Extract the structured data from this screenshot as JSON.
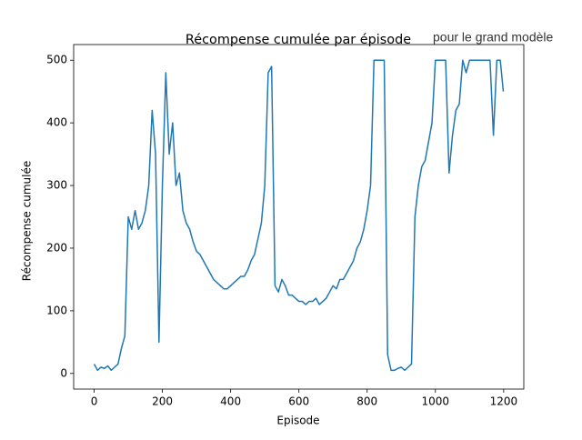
{
  "chart_data": {
    "type": "line",
    "title": "Récompense cumulée par épisode",
    "annotation": "pour le grand modèle",
    "xlabel": "Episode",
    "ylabel": "Récompense cumulée",
    "x": [
      0,
      10,
      20,
      30,
      40,
      50,
      60,
      70,
      80,
      90,
      100,
      110,
      120,
      130,
      140,
      150,
      160,
      170,
      180,
      190,
      200,
      210,
      220,
      230,
      240,
      250,
      260,
      270,
      280,
      290,
      300,
      310,
      320,
      330,
      340,
      350,
      360,
      370,
      380,
      390,
      400,
      410,
      420,
      430,
      440,
      450,
      460,
      470,
      480,
      490,
      500,
      510,
      520,
      530,
      540,
      550,
      560,
      570,
      580,
      590,
      600,
      610,
      620,
      630,
      640,
      650,
      660,
      670,
      680,
      690,
      700,
      710,
      720,
      730,
      740,
      750,
      760,
      770,
      780,
      790,
      800,
      810,
      820,
      830,
      840,
      850,
      860,
      870,
      880,
      890,
      900,
      910,
      920,
      930,
      940,
      950,
      960,
      970,
      980,
      990,
      1000,
      1010,
      1020,
      1030,
      1040,
      1050,
      1060,
      1070,
      1080,
      1090,
      1100,
      1110,
      1120,
      1130,
      1140,
      1150,
      1160,
      1170,
      1180,
      1190,
      1199
    ],
    "series": [
      {
        "name": "Récompense cumulée",
        "color": "#1f77b4",
        "values": [
          15,
          5,
          10,
          8,
          12,
          5,
          10,
          15,
          40,
          60,
          250,
          230,
          260,
          230,
          240,
          260,
          300,
          420,
          350,
          50,
          300,
          480,
          350,
          400,
          300,
          320,
          260,
          240,
          230,
          210,
          195,
          190,
          180,
          170,
          160,
          150,
          145,
          140,
          135,
          135,
          140,
          145,
          150,
          155,
          155,
          165,
          180,
          190,
          215,
          240,
          300,
          480,
          490,
          140,
          130,
          150,
          140,
          125,
          125,
          120,
          115,
          115,
          110,
          115,
          115,
          120,
          110,
          115,
          120,
          130,
          140,
          135,
          150,
          150,
          160,
          170,
          180,
          200,
          210,
          230,
          260,
          300,
          500,
          500,
          500,
          500,
          30,
          5,
          5,
          8,
          10,
          5,
          10,
          15,
          250,
          300,
          330,
          340,
          370,
          400,
          500,
          500,
          500,
          500,
          320,
          380,
          420,
          430,
          500,
          480,
          500,
          500,
          500,
          500,
          500,
          500,
          500,
          380,
          500,
          500,
          450
        ]
      }
    ],
    "xlim": [
      -60,
      1259
    ],
    "ylim": [
      -25,
      525
    ],
    "xticks": [
      0,
      200,
      400,
      600,
      800,
      1000,
      1200
    ],
    "yticks": [
      0,
      100,
      200,
      300,
      400,
      500
    ]
  }
}
